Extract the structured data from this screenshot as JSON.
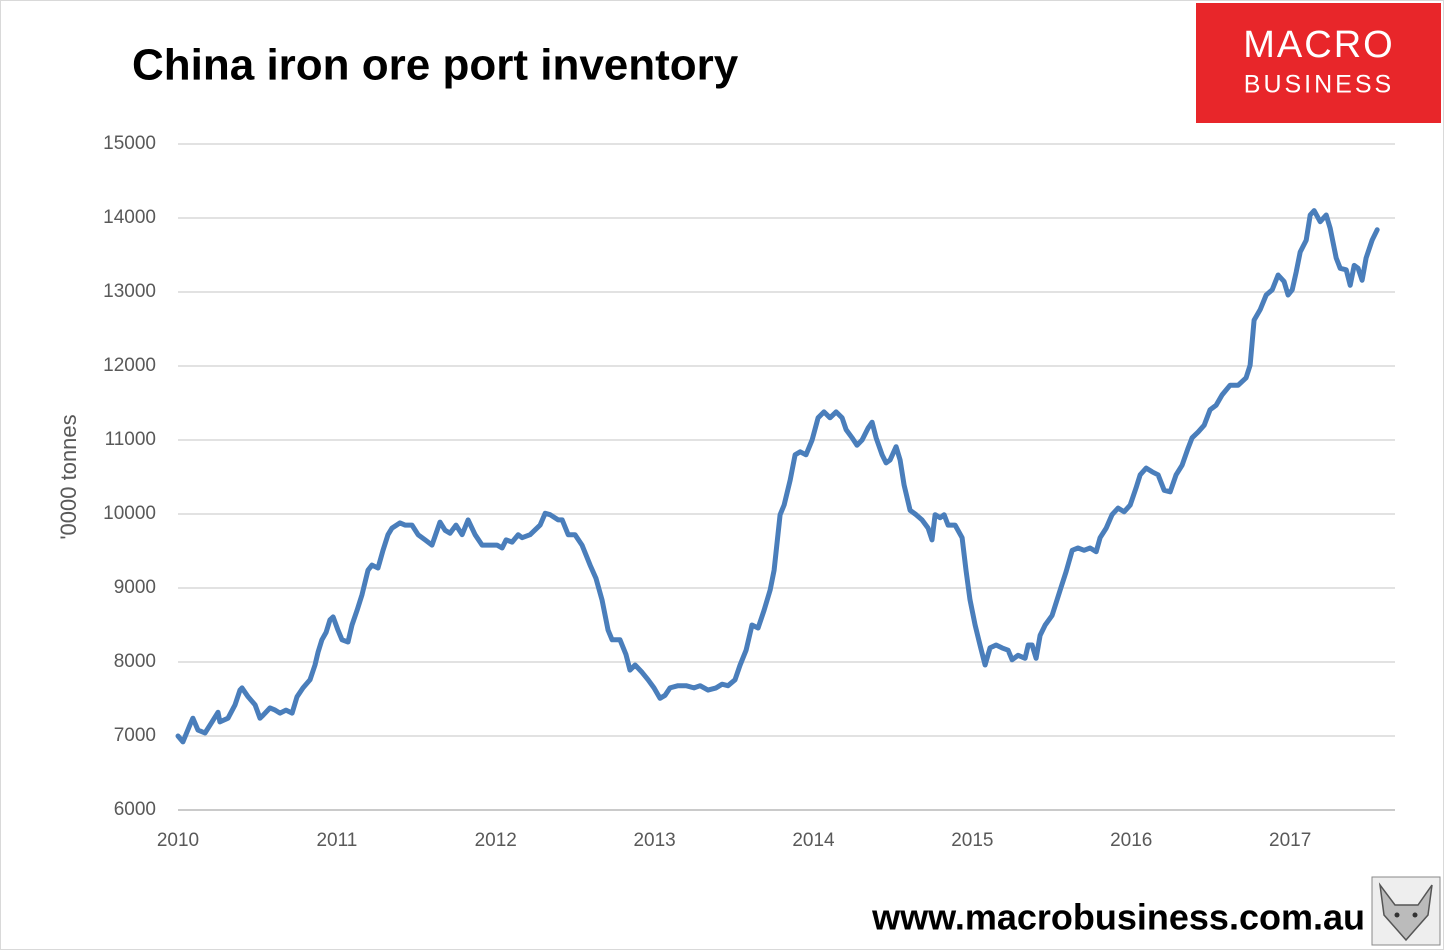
{
  "chart_data": {
    "type": "line",
    "title": "China iron ore port inventory",
    "y_label": "'0000 tonnes",
    "xlim": [
      2010,
      2017.66
    ],
    "xticks": [
      2010,
      2011,
      2012,
      2013,
      2014,
      2015,
      2016,
      2017
    ],
    "ylim": [
      6000,
      15000
    ],
    "yticks": [
      6000,
      7000,
      8000,
      9000,
      10000,
      11000,
      12000,
      13000,
      14000,
      15000
    ],
    "grid": true,
    "series": [
      {
        "color": "#4a7ebb",
        "x": [
          2010.0,
          2010.031,
          2010.075,
          2010.094,
          2010.126,
          2010.17,
          2010.214,
          2010.252,
          2010.264,
          2010.315,
          2010.359,
          2010.39,
          2010.403,
          2010.441,
          2010.485,
          2010.516,
          2010.535,
          2010.579,
          2010.611,
          2010.642,
          2010.68,
          2010.718,
          2010.749,
          2010.787,
          2010.831,
          2010.862,
          2010.881,
          2010.906,
          2010.932,
          2010.957,
          2010.976,
          2011.007,
          2011.032,
          2011.07,
          2011.095,
          2011.127,
          2011.158,
          2011.196,
          2011.221,
          2011.259,
          2011.29,
          2011.322,
          2011.347,
          2011.397,
          2011.429,
          2011.473,
          2011.511,
          2011.555,
          2011.599,
          2011.649,
          2011.681,
          2011.712,
          2011.75,
          2011.788,
          2011.826,
          2011.87,
          2011.914,
          2011.964,
          2012.008,
          2012.04,
          2012.065,
          2012.103,
          2012.141,
          2012.166,
          2012.216,
          2012.279,
          2012.311,
          2012.342,
          2012.393,
          2012.418,
          2012.456,
          2012.499,
          2012.543,
          2012.594,
          2012.631,
          2012.669,
          2012.707,
          2012.732,
          2012.782,
          2012.82,
          2012.845,
          2012.877,
          2012.921,
          2012.959,
          2012.996,
          2013.034,
          2013.066,
          2013.097,
          2013.147,
          2013.198,
          2013.248,
          2013.286,
          2013.336,
          2013.387,
          2013.424,
          2013.462,
          2013.506,
          2013.538,
          2013.576,
          2013.613,
          2013.651,
          2013.689,
          2013.727,
          2013.752,
          2013.79,
          2013.815,
          2013.853,
          2013.884,
          2013.916,
          2013.953,
          2013.991,
          2014.029,
          2014.066,
          2014.104,
          2014.142,
          2014.18,
          2014.205,
          2014.243,
          2014.274,
          2014.306,
          2014.343,
          2014.369,
          2014.394,
          2014.432,
          2014.457,
          2014.482,
          2014.52,
          2014.545,
          2014.57,
          2014.608,
          2014.646,
          2014.683,
          2014.721,
          2014.746,
          2014.765,
          2014.797,
          2014.822,
          2014.847,
          2014.891,
          2014.935,
          2014.96,
          2014.985,
          2015.017,
          2015.048,
          2015.08,
          2015.111,
          2015.149,
          2015.187,
          2015.225,
          2015.25,
          2015.288,
          2015.332,
          2015.351,
          2015.376,
          2015.401,
          2015.426,
          2015.458,
          2015.502,
          2015.552,
          2015.59,
          2015.628,
          2015.665,
          2015.703,
          2015.741,
          2015.779,
          2015.804,
          2015.842,
          2015.879,
          2015.917,
          2015.955,
          2015.993,
          2016.03,
          2016.056,
          2016.094,
          2016.131,
          2016.169,
          2016.207,
          2016.245,
          2016.282,
          2016.32,
          2016.358,
          2016.383,
          2016.421,
          2016.459,
          2016.496,
          2016.534,
          2016.572,
          2016.622,
          2016.673,
          2016.723,
          2016.748,
          2016.773,
          2016.811,
          2016.849,
          2016.887,
          2016.924,
          2016.962,
          2016.987,
          2017.013,
          2017.038,
          2017.063,
          2017.101,
          2017.126,
          2017.151,
          2017.189,
          2017.227,
          2017.252,
          2017.29,
          2017.315,
          2017.353,
          2017.378,
          2017.403,
          2017.428,
          2017.453,
          2017.478,
          2017.516,
          2017.548
        ],
        "values": [
          7000,
          6920,
          7150,
          7240,
          7080,
          7040,
          7190,
          7320,
          7190,
          7240,
          7420,
          7620,
          7650,
          7530,
          7420,
          7240,
          7280,
          7380,
          7350,
          7310,
          7350,
          7310,
          7530,
          7650,
          7760,
          7960,
          8130,
          8300,
          8400,
          8570,
          8610,
          8430,
          8300,
          8270,
          8500,
          8700,
          8910,
          9240,
          9310,
          9270,
          9510,
          9720,
          9810,
          9880,
          9850,
          9850,
          9720,
          9650,
          9580,
          9890,
          9780,
          9740,
          9850,
          9720,
          9920,
          9720,
          9580,
          9580,
          9580,
          9540,
          9650,
          9620,
          9720,
          9680,
          9720,
          9850,
          10010,
          9990,
          9920,
          9920,
          9720,
          9720,
          9580,
          9310,
          9130,
          8840,
          8430,
          8300,
          8300,
          8100,
          7890,
          7960,
          7860,
          7760,
          7650,
          7510,
          7550,
          7650,
          7680,
          7680,
          7650,
          7680,
          7620,
          7650,
          7700,
          7680,
          7760,
          7960,
          8160,
          8500,
          8460,
          8700,
          8970,
          9240,
          9990,
          10120,
          10460,
          10800,
          10840,
          10800,
          11000,
          11300,
          11380,
          11300,
          11380,
          11300,
          11140,
          11030,
          10930,
          11000,
          11160,
          11240,
          11030,
          10800,
          10690,
          10730,
          10910,
          10730,
          10390,
          10050,
          9990,
          9920,
          9810,
          9650,
          9990,
          9950,
          9990,
          9850,
          9850,
          9680,
          9240,
          8840,
          8500,
          8230,
          7960,
          8190,
          8230,
          8190,
          8160,
          8030,
          8090,
          8050,
          8230,
          8230,
          8050,
          8360,
          8500,
          8630,
          8970,
          9220,
          9510,
          9540,
          9510,
          9540,
          9490,
          9680,
          9810,
          9990,
          10080,
          10030,
          10120,
          10350,
          10530,
          10620,
          10570,
          10530,
          10320,
          10300,
          10530,
          10660,
          10890,
          11030,
          11110,
          11200,
          11410,
          11470,
          11610,
          11740,
          11740,
          11840,
          12010,
          12620,
          12760,
          12960,
          13030,
          13230,
          13140,
          12960,
          13030,
          13270,
          13540,
          13700,
          14040,
          14100,
          13950,
          14040,
          13860,
          13460,
          13320,
          13300,
          13090,
          13360,
          13320,
          13160,
          13460,
          13700,
          13840
        ]
      }
    ]
  },
  "branding": {
    "logo_top": "MACRO",
    "logo_bottom": "BUSINESS",
    "website": "www.macrobusiness.com.au"
  }
}
